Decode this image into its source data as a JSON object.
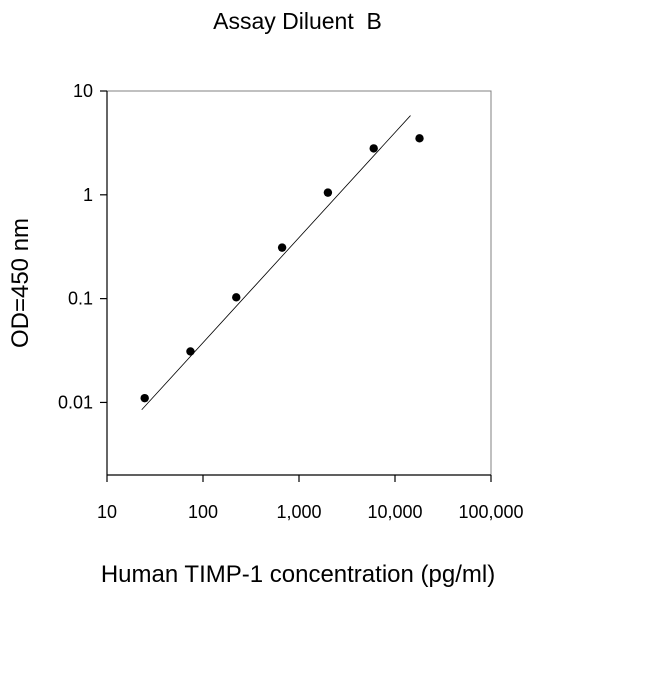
{
  "chart_data": {
    "type": "scatter",
    "title": "Assay Diluent  B",
    "xlabel": "Human TIMP-1 concentration (pg/ml)",
    "ylabel": "OD=450 nm",
    "xscale": "log",
    "yscale": "log",
    "xlim": [
      10,
      100000
    ],
    "ylim": [
      0.002,
      10
    ],
    "xticks": [
      10,
      100,
      1000,
      10000,
      100000
    ],
    "xtick_labels": [
      "10",
      "100",
      "1,000",
      "10,000",
      "100,000"
    ],
    "yticks": [
      0.01,
      0.1,
      1,
      10
    ],
    "ytick_labels": [
      "0.01",
      "0.1",
      "1",
      "10"
    ],
    "grid": false,
    "legend": "none",
    "series": [
      {
        "x": [
          24.7,
          74,
          222,
          667,
          2000,
          6000,
          18000
        ],
        "y": [
          0.011,
          0.031,
          0.103,
          0.31,
          1.05,
          2.8,
          3.5
        ]
      }
    ],
    "fit_line": {
      "x": [
        23,
        14500
      ],
      "y": [
        0.0085,
        5.8
      ]
    }
  }
}
